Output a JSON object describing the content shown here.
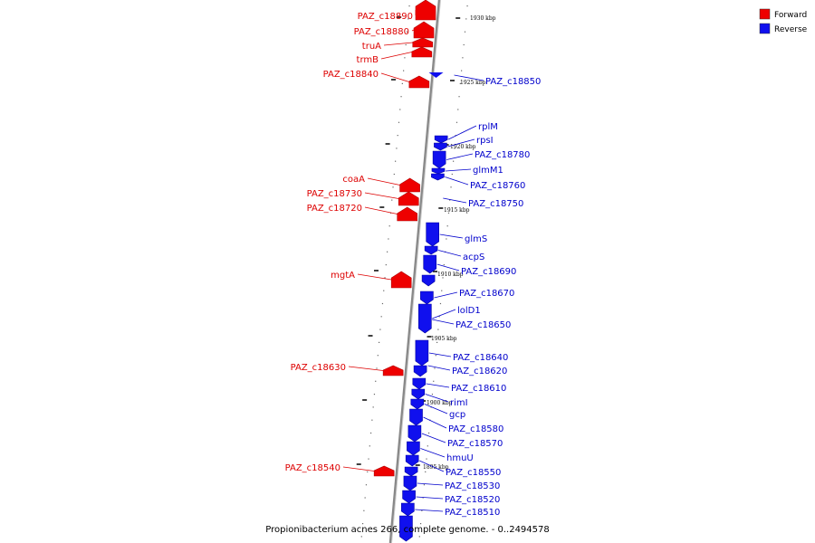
{
  "caption": "Propionibacterium acnes 266, complete genome. - 0..2494578",
  "legend": [
    {
      "label": "Forward",
      "color": "#ee0000"
    },
    {
      "label": "Reverse",
      "color": "#1010ee"
    }
  ],
  "colors": {
    "forward": "#ee0000",
    "reverse": "#1010ee",
    "forward_label": "#dd0000",
    "reverse_label": "#0000cc",
    "backbone": "#888888"
  },
  "scale_marks": [
    {
      "label": "1930 kbp"
    },
    {
      "label": "1925 kbp"
    },
    {
      "label": "1920 kbp"
    },
    {
      "label": "1915 kbp"
    },
    {
      "label": "1910 kbp"
    },
    {
      "label": "1905 kbp"
    },
    {
      "label": "1900 kbp"
    },
    {
      "label": "1895 kbp"
    }
  ],
  "forward_genes": [
    {
      "name": "PAZ_c18890"
    },
    {
      "name": "PAZ_c18880"
    },
    {
      "name": "truA"
    },
    {
      "name": "trmB"
    },
    {
      "name": "PAZ_c18840"
    },
    {
      "name": "coaA"
    },
    {
      "name": "PAZ_c18730"
    },
    {
      "name": "PAZ_c18720"
    },
    {
      "name": "mgtA"
    },
    {
      "name": "PAZ_c18630"
    },
    {
      "name": "PAZ_c18540"
    }
  ],
  "reverse_genes": [
    {
      "name": "PAZ_c18850"
    },
    {
      "name": "rplM"
    },
    {
      "name": "rpsI"
    },
    {
      "name": "PAZ_c18780"
    },
    {
      "name": "glmM1"
    },
    {
      "name": "PAZ_c18760"
    },
    {
      "name": "PAZ_c18750"
    },
    {
      "name": "glmS"
    },
    {
      "name": "acpS"
    },
    {
      "name": "PAZ_c18690"
    },
    {
      "name": "PAZ_c18670"
    },
    {
      "name": "lolD1"
    },
    {
      "name": "PAZ_c18650"
    },
    {
      "name": "PAZ_c18640"
    },
    {
      "name": "PAZ_c18620"
    },
    {
      "name": "PAZ_c18610"
    },
    {
      "name": "rimI"
    },
    {
      "name": "gcp"
    },
    {
      "name": "PAZ_c18580"
    },
    {
      "name": "PAZ_c18570"
    },
    {
      "name": "hmuU"
    },
    {
      "name": "PAZ_c18550"
    },
    {
      "name": "PAZ_c18530"
    },
    {
      "name": "PAZ_c18520"
    },
    {
      "name": "PAZ_c18510"
    }
  ]
}
